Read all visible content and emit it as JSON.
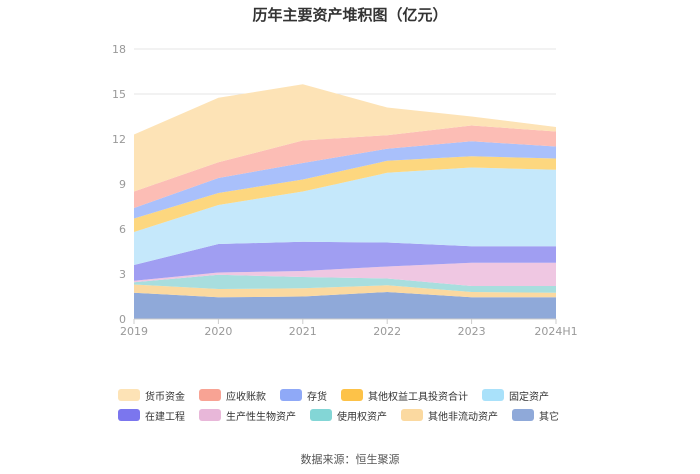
{
  "chart_data": {
    "type": "area",
    "stacked": true,
    "title": "历年主要资产堆积图（亿元）",
    "categories": [
      "2019",
      "2020",
      "2021",
      "2022",
      "2023",
      "2024H1"
    ],
    "y_ticks": [
      "0",
      "3",
      "6",
      "9",
      "12",
      "15",
      "18"
    ],
    "ylim": [
      0,
      18
    ],
    "grid": true,
    "legend_position": "bottom",
    "series": [
      {
        "name": "其它",
        "color": "#8fa9d9",
        "values": [
          1.75,
          1.45,
          1.5,
          1.8,
          1.45,
          1.45
        ]
      },
      {
        "name": "其他非流动资产",
        "color": "#fbd9a0",
        "values": [
          0.55,
          0.55,
          0.55,
          0.45,
          0.35,
          0.3
        ]
      },
      {
        "name": "使用权资产",
        "color": "#a8dede",
        "values": [
          0.15,
          0.95,
          0.75,
          0.45,
          0.4,
          0.45
        ]
      },
      {
        "name": "生产性生物资产",
        "color": "#efc7e2",
        "values": [
          0.1,
          0.15,
          0.4,
          0.8,
          1.55,
          1.55
        ]
      },
      {
        "name": "在建工程",
        "color": "#a09ef2",
        "values": [
          1.05,
          1.9,
          1.95,
          1.6,
          1.1,
          1.1
        ]
      },
      {
        "name": "固定资产",
        "color": "#c5e8fb",
        "values": [
          2.2,
          2.6,
          3.35,
          4.65,
          5.25,
          5.1
        ]
      },
      {
        "name": "其他权益工具投资合计",
        "color": "#fdd77f",
        "values": [
          0.9,
          0.8,
          0.8,
          0.8,
          0.75,
          0.75
        ]
      },
      {
        "name": "存货",
        "color": "#a9c0fb",
        "values": [
          0.7,
          1.0,
          1.1,
          0.8,
          1.0,
          0.8
        ]
      },
      {
        "name": "应收账款",
        "color": "#fcbdb5",
        "values": [
          1.1,
          1.05,
          1.5,
          0.9,
          1.05,
          1.0
        ]
      },
      {
        "name": "货币资金",
        "color": "#fde3b6",
        "values": [
          3.8,
          4.3,
          3.75,
          1.85,
          0.6,
          0.3
        ]
      }
    ],
    "legend_order": [
      "货币资金",
      "应收账款",
      "存货",
      "其他权益工具投资合计",
      "固定资产",
      "在建工程",
      "生产性生物资产",
      "使用权资产",
      "其他非流动资产",
      "其它"
    ],
    "legend_swatch_colors": {
      "货币资金": "#fde3b6",
      "应收账款": "#f8a394",
      "存货": "#8fa9f7",
      "其他权益工具投资合计": "#fdc248",
      "固定资产": "#a9e1fa",
      "在建工程": "#7b76ee",
      "生产性生物资产": "#e8b7d9",
      "使用权资产": "#83d6d6",
      "其他非流动资产": "#fbd9a0",
      "其它": "#8fa9d9"
    }
  },
  "footer": {
    "source": "数据来源：恒生聚源"
  }
}
